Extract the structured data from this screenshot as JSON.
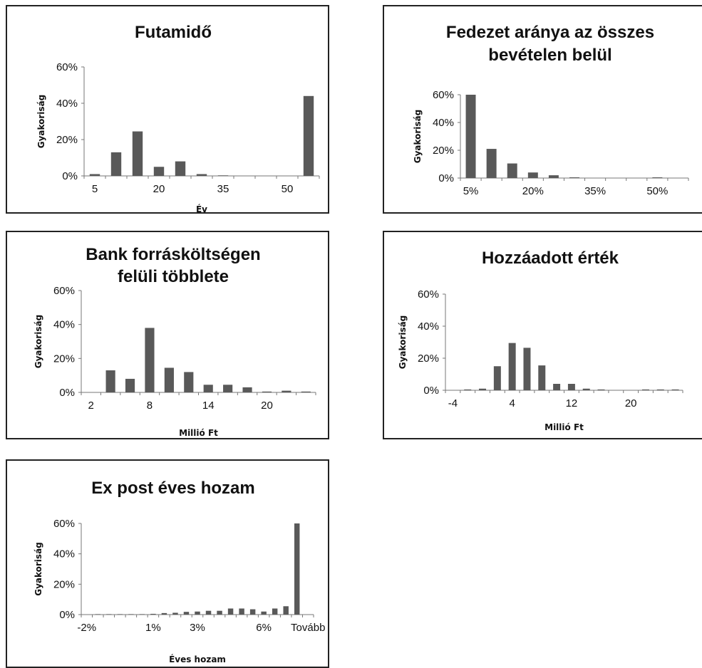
{
  "chart_data": [
    {
      "id": "futamido",
      "type": "bar",
      "title": [
        "Futamidő"
      ],
      "xlabel": "Év",
      "ylabel": "Gyakoriság",
      "yticks": [
        "0%",
        "20%",
        "40%",
        "60%"
      ],
      "ylim": [
        0,
        60
      ],
      "xticks": [
        "5",
        "20",
        "35",
        "50"
      ],
      "categories": [
        "5",
        "10",
        "15",
        "20",
        "25",
        "30",
        "35",
        "40",
        "45",
        "50",
        "55"
      ],
      "values": [
        1,
        13,
        24.5,
        5,
        8,
        1,
        0.3,
        0,
        0,
        0,
        44
      ]
    },
    {
      "id": "fedezet",
      "type": "bar",
      "title": [
        "Fedezet aránya az összes",
        "bevételen belül"
      ],
      "xlabel": "",
      "ylabel": "Gyakoriság",
      "yticks": [
        "0%",
        "20%",
        "40%",
        "60%"
      ],
      "ylim": [
        0,
        60
      ],
      "xticks": [
        "5%",
        "20%",
        "35%",
        "50%"
      ],
      "categories": [
        "5%",
        "10%",
        "15%",
        "20%",
        "25%",
        "30%",
        "35%",
        "40%",
        "45%",
        "50%",
        "55%"
      ],
      "values": [
        60,
        21,
        10.5,
        4,
        2,
        0.5,
        0,
        0,
        0,
        0.5,
        0
      ]
    },
    {
      "id": "bank",
      "type": "bar",
      "title": [
        "Bank forrásköltségen",
        "felüli többlete"
      ],
      "xlabel": "Millió Ft",
      "ylabel": "Gyakoriság",
      "yticks": [
        "0%",
        "20%",
        "40%",
        "60%"
      ],
      "ylim": [
        0,
        60
      ],
      "xticks": [
        "2",
        "8",
        "14",
        "20"
      ],
      "categories": [
        "2",
        "4",
        "6",
        "8",
        "10",
        "12",
        "14",
        "16",
        "18",
        "20",
        "22",
        "24"
      ],
      "values": [
        0,
        13,
        8,
        38,
        14.5,
        12,
        4.5,
        4.5,
        3,
        0.5,
        1,
        0.5
      ]
    },
    {
      "id": "hozzaadott",
      "type": "bar",
      "title": [
        "Hozzáadott érték"
      ],
      "xlabel": "Millió Ft",
      "ylabel": "Gyakoriság",
      "yticks": [
        "0%",
        "20%",
        "40%",
        "60%"
      ],
      "ylim": [
        0,
        60
      ],
      "xticks": [
        "-4",
        "4",
        "12",
        "20"
      ],
      "categories": [
        "-4",
        "-2",
        "0",
        "2",
        "4",
        "6",
        "8",
        "10",
        "12",
        "14",
        "16",
        "18",
        "20",
        "22",
        "24",
        "26"
      ],
      "values": [
        0,
        0.5,
        1,
        15,
        29.5,
        26.5,
        15.5,
        4,
        4,
        1,
        0.5,
        0,
        0,
        0.5,
        0.5,
        0.5
      ]
    },
    {
      "id": "expost",
      "type": "bar",
      "title": [
        "Ex post éves hozam"
      ],
      "xlabel": "Éves hozam",
      "ylabel": "Gyakoriság",
      "yticks": [
        "0%",
        "20%",
        "40%",
        "60%"
      ],
      "ylim": [
        0,
        60
      ],
      "xticks": [
        "-2%",
        "1%",
        "3%",
        "6%",
        "Tovább"
      ],
      "categories": [
        "-2%",
        "-1.5%",
        "-1%",
        "-0.5%",
        "0%",
        "0.5%",
        "1%",
        "1.5%",
        "2%",
        "2.5%",
        "3%",
        "3.5%",
        "4%",
        "4.5%",
        "5%",
        "5.5%",
        "6%",
        "6.5%",
        "7%",
        "7.5%",
        "Tovább"
      ],
      "values": [
        0,
        0.3,
        0.3,
        0.3,
        0.3,
        0.3,
        0.5,
        1,
        1.2,
        1.8,
        2,
        2.5,
        2.5,
        4,
        4,
        3.5,
        2,
        4,
        5.5,
        60,
        0
      ]
    }
  ]
}
